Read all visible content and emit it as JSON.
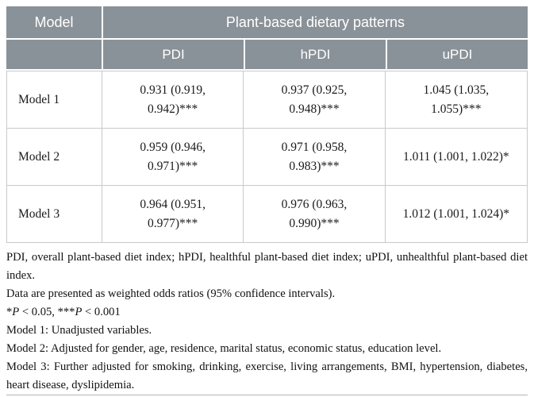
{
  "table": {
    "header": {
      "model_label": "Model",
      "group_label": "Plant-based dietary patterns",
      "columns": [
        "PDI",
        "hPDI",
        "uPDI"
      ]
    },
    "rows": [
      {
        "label": "Model 1",
        "values": [
          "0.931 (0.919, 0.942)***",
          "0.937 (0.925, 0.948)***",
          "1.045 (1.035, 1.055)***"
        ]
      },
      {
        "label": "Model 2",
        "values": [
          "0.959 (0.946, 0.971)***",
          "0.971 (0.958, 0.983)***",
          "1.011 (1.001, 1.022)*"
        ]
      },
      {
        "label": "Model 3",
        "values": [
          "0.964 (0.951, 0.977)***",
          "0.976 (0.963, 0.990)***",
          "1.012 (1.001, 1.024)*"
        ]
      }
    ]
  },
  "footnotes": [
    "PDI, overall plant-based diet index; hPDI, healthful plant-based diet index; uPDI, unhealthful plant-based diet index.",
    "Data are presented as weighted odds ratios (95% confidence intervals).",
    {
      "s1": "*",
      "p1": "P",
      "s2": " < 0.05, ***",
      "p2": "P",
      "s3": " < 0.001"
    },
    "Model 1: Unadjusted variables.",
    "Model 2: Adjusted for gender, age, residence, marital status, economic status, education level.",
    "Model 3: Further adjusted for smoking, drinking, exercise, living arrangements, BMI, hypertension, diabetes, heart disease, dyslipidemia."
  ],
  "colors": {
    "header_bg": "#8A9299",
    "header_text": "#ffffff",
    "border": "#c9c9c9",
    "body_text": "#1a1a1a"
  }
}
